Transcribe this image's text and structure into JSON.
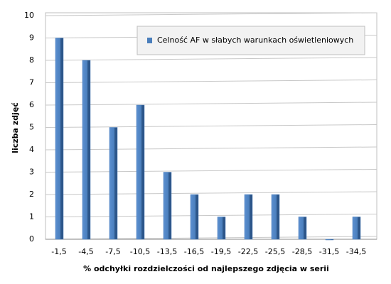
{
  "chart_data": {
    "type": "bar",
    "xlabel": "% odchyłki rozdzielczości od najlepszego zdjęcia w serii",
    "ylabel": "liczba zdjęć",
    "categories": [
      "-1,5",
      "-4,5",
      "-7,5",
      "-10,5",
      "-13,5",
      "-16,5",
      "-19,5",
      "-22,5",
      "-25,5",
      "-28,5",
      "-31,5",
      "-34,5"
    ],
    "series": [
      {
        "name": "Celność AF w słabych warunkach oświetleniowych",
        "color": "#4a7ebb",
        "values": [
          9,
          8,
          5,
          6,
          3,
          2,
          1,
          2,
          2,
          1,
          0,
          1
        ]
      }
    ],
    "ylim": [
      0,
      10
    ],
    "yticks": [
      0,
      1,
      2,
      3,
      4,
      5,
      6,
      7,
      8,
      9,
      10
    ],
    "grid": true,
    "legend": "top-right"
  }
}
